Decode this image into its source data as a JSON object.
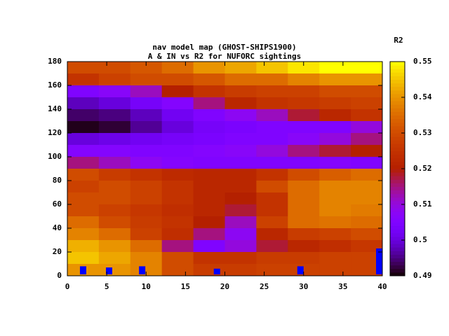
{
  "chart_data": {
    "type": "heatmap",
    "title": "nav model map (GHOST-SHIPS1900)",
    "subtitle": "A & IN vs R2 for NUFORC sightings",
    "colorbar_label": "R2",
    "x": [
      2,
      6,
      10,
      14,
      18,
      22,
      26,
      30,
      34,
      38
    ],
    "y": [
      175,
      165,
      155,
      145,
      135,
      125,
      115,
      105,
      95,
      85,
      75,
      65,
      55,
      45,
      35,
      25,
      15,
      5
    ],
    "z": [
      [
        0.53,
        0.53,
        0.532,
        0.535,
        0.54,
        0.542,
        0.545,
        0.548,
        0.55,
        0.55
      ],
      [
        0.525,
        0.528,
        0.53,
        0.53,
        0.532,
        0.535,
        0.535,
        0.538,
        0.54,
        0.54
      ],
      [
        0.505,
        0.507,
        0.512,
        0.52,
        0.525,
        0.527,
        0.528,
        0.528,
        0.53,
        0.53
      ],
      [
        0.498,
        0.5,
        0.503,
        0.506,
        0.515,
        0.522,
        0.525,
        0.526,
        0.527,
        0.528
      ],
      [
        0.494,
        0.495,
        0.498,
        0.502,
        0.505,
        0.508,
        0.512,
        0.518,
        0.522,
        0.525
      ],
      [
        0.491,
        0.492,
        0.496,
        0.5,
        0.503,
        0.504,
        0.505,
        0.505,
        0.505,
        0.51
      ],
      [
        0.5,
        0.501,
        0.502,
        0.503,
        0.504,
        0.505,
        0.505,
        0.507,
        0.51,
        0.515
      ],
      [
        0.506,
        0.506,
        0.505,
        0.505,
        0.506,
        0.507,
        0.51,
        0.515,
        0.518,
        0.52
      ],
      [
        0.515,
        0.512,
        0.508,
        0.506,
        0.505,
        0.505,
        0.505,
        0.505,
        0.506,
        0.505
      ],
      [
        0.53,
        0.527,
        0.525,
        0.523,
        0.522,
        0.522,
        0.525,
        0.53,
        0.533,
        0.535
      ],
      [
        0.528,
        0.53,
        0.528,
        0.525,
        0.522,
        0.522,
        0.53,
        0.535,
        0.538,
        0.538
      ],
      [
        0.53,
        0.53,
        0.528,
        0.525,
        0.522,
        0.52,
        0.525,
        0.535,
        0.538,
        0.538
      ],
      [
        0.53,
        0.528,
        0.526,
        0.524,
        0.522,
        0.518,
        0.525,
        0.535,
        0.538,
        0.537
      ],
      [
        0.535,
        0.53,
        0.527,
        0.525,
        0.52,
        0.512,
        0.528,
        0.535,
        0.536,
        0.535
      ],
      [
        0.538,
        0.535,
        0.528,
        0.524,
        0.515,
        0.508,
        0.522,
        0.527,
        0.528,
        0.53
      ],
      [
        0.543,
        0.54,
        0.535,
        0.515,
        0.505,
        0.51,
        0.518,
        0.522,
        0.524,
        0.526
      ],
      [
        0.545,
        0.542,
        0.538,
        0.53,
        0.525,
        0.525,
        0.527,
        0.527,
        0.528,
        0.528
      ],
      [
        0.54,
        0.54,
        0.538,
        0.53,
        0.527,
        0.527,
        0.528,
        0.528,
        0.528,
        0.528
      ]
    ],
    "markers": {
      "color": "#0000ff",
      "x": [
        2,
        5.3,
        9.5,
        19,
        29.6,
        39.6
      ],
      "values": [
        8,
        7,
        8,
        6,
        8,
        23
      ]
    },
    "xlim": [
      0,
      40
    ],
    "xticks": [
      0,
      5,
      10,
      15,
      20,
      25,
      30,
      35,
      40
    ],
    "ylim": [
      0,
      180
    ],
    "yticks": [
      0,
      20,
      40,
      60,
      80,
      100,
      120,
      140,
      160,
      180
    ],
    "zlim": [
      0.49,
      0.55
    ],
    "zticks": [
      0.49,
      0.5,
      0.51,
      0.52,
      0.53,
      0.54,
      0.55
    ]
  }
}
